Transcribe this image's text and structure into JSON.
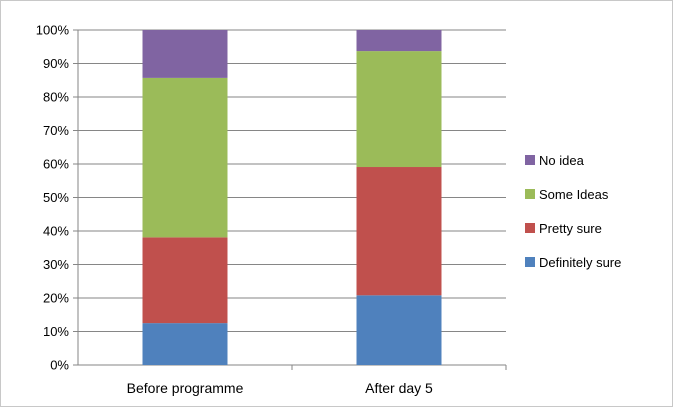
{
  "chart_data": {
    "type": "bar",
    "stacked": true,
    "categories": [
      "Before programme",
      "After day 5"
    ],
    "series": [
      {
        "name": "Definitely sure",
        "color": "#4F81BD",
        "values": [
          12.5,
          20.8
        ]
      },
      {
        "name": "Pretty sure",
        "color": "#C0504D",
        "values": [
          25.6,
          38.3
        ]
      },
      {
        "name": "Some Ideas",
        "color": "#9BBB59",
        "values": [
          47.6,
          34.6
        ]
      },
      {
        "name": "No idea",
        "color": "#8064A2",
        "values": [
          14.3,
          6.3
        ]
      }
    ],
    "y_ticks": [
      "0%",
      "10%",
      "20%",
      "30%",
      "40%",
      "50%",
      "60%",
      "70%",
      "80%",
      "90%",
      "100%"
    ],
    "ylim": [
      0,
      100
    ],
    "grid": true,
    "legend_position": "right",
    "legend_order": [
      "No idea",
      "Some Ideas",
      "Pretty sure",
      "Definitely sure"
    ]
  }
}
